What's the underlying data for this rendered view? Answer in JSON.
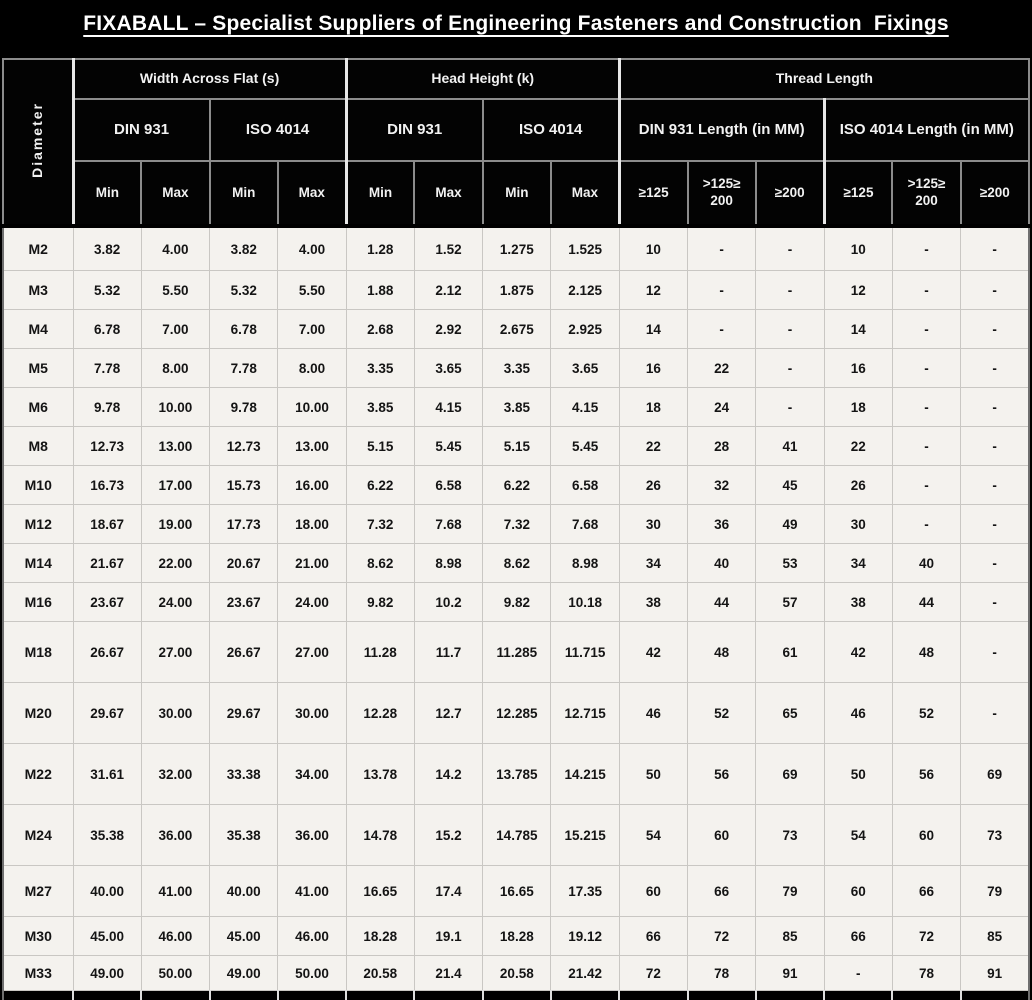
{
  "page": {
    "title": "FIXABALL – Specialist Suppliers of Engineering Fasteners and Construction  Fixings"
  },
  "table": {
    "diameter_header": "Diameter",
    "groups": [
      {
        "label": "Width Across Flat (s)"
      },
      {
        "label": "Head Height (k)"
      },
      {
        "label": "Thread Length"
      }
    ],
    "subgroups": [
      "DIN 931",
      "ISO 4014",
      "DIN 931",
      "ISO 4014",
      "DIN 931 Length (in MM)",
      "ISO 4014 Length (in MM)"
    ],
    "columns": [
      "Min",
      "Max",
      "Min",
      "Max",
      "Min",
      "Max",
      "Min",
      "Max",
      "≥125",
      ">125≥ 200",
      "≥200",
      "≥125",
      ">125≥ 200",
      "≥200"
    ],
    "rows": [
      {
        "diameter": "M2",
        "cells": [
          "3.82",
          "4.00",
          "3.82",
          "4.00",
          "1.28",
          "1.52",
          "1.275",
          "1.525",
          "10",
          "-",
          "-",
          "10",
          "-",
          "-"
        ]
      },
      {
        "diameter": "M3",
        "cells": [
          "5.32",
          "5.50",
          "5.32",
          "5.50",
          "1.88",
          "2.12",
          "1.875",
          "2.125",
          "12",
          "-",
          "-",
          "12",
          "-",
          "-"
        ]
      },
      {
        "diameter": "M4",
        "cells": [
          "6.78",
          "7.00",
          "6.78",
          "7.00",
          "2.68",
          "2.92",
          "2.675",
          "2.925",
          "14",
          "-",
          "-",
          "14",
          "-",
          "-"
        ]
      },
      {
        "diameter": "M5",
        "cells": [
          "7.78",
          "8.00",
          "7.78",
          "8.00",
          "3.35",
          "3.65",
          "3.35",
          "3.65",
          "16",
          "22",
          "-",
          "16",
          "-",
          "-"
        ]
      },
      {
        "diameter": "M6",
        "cells": [
          "9.78",
          "10.00",
          "9.78",
          "10.00",
          "3.85",
          "4.15",
          "3.85",
          "4.15",
          "18",
          "24",
          "-",
          "18",
          "-",
          "-"
        ]
      },
      {
        "diameter": "M8",
        "cells": [
          "12.73",
          "13.00",
          "12.73",
          "13.00",
          "5.15",
          "5.45",
          "5.15",
          "5.45",
          "22",
          "28",
          "41",
          "22",
          "-",
          "-"
        ]
      },
      {
        "diameter": "M10",
        "cells": [
          "16.73",
          "17.00",
          "15.73",
          "16.00",
          "6.22",
          "6.58",
          "6.22",
          "6.58",
          "26",
          "32",
          "45",
          "26",
          "-",
          "-"
        ]
      },
      {
        "diameter": "M12",
        "cells": [
          "18.67",
          "19.00",
          "17.73",
          "18.00",
          "7.32",
          "7.68",
          "7.32",
          "7.68",
          "30",
          "36",
          "49",
          "30",
          "-",
          "-"
        ]
      },
      {
        "diameter": "M14",
        "cells": [
          "21.67",
          "22.00",
          "20.67",
          "21.00",
          "8.62",
          "8.98",
          "8.62",
          "8.98",
          "34",
          "40",
          "53",
          "34",
          "40",
          "-"
        ]
      },
      {
        "diameter": "M16",
        "cells": [
          "23.67",
          "24.00",
          "23.67",
          "24.00",
          "9.82",
          "10.2",
          "9.82",
          "10.18",
          "38",
          "44",
          "57",
          "38",
          "44",
          "-"
        ]
      },
      {
        "diameter": "M18",
        "cells": [
          "26.67",
          "27.00",
          "26.67",
          "27.00",
          "11.28",
          "11.7",
          "11.285",
          "11.715",
          "42",
          "48",
          "61",
          "42",
          "48",
          "-"
        ]
      },
      {
        "diameter": "M20",
        "cells": [
          "29.67",
          "30.00",
          "29.67",
          "30.00",
          "12.28",
          "12.7",
          "12.285",
          "12.715",
          "46",
          "52",
          "65",
          "46",
          "52",
          "-"
        ]
      },
      {
        "diameter": "M22",
        "cells": [
          "31.61",
          "32.00",
          "33.38",
          "34.00",
          "13.78",
          "14.2",
          "13.785",
          "14.215",
          "50",
          "56",
          "69",
          "50",
          "56",
          "69"
        ]
      },
      {
        "diameter": "M24",
        "cells": [
          "35.38",
          "36.00",
          "35.38",
          "36.00",
          "14.78",
          "15.2",
          "14.785",
          "15.215",
          "54",
          "60",
          "73",
          "54",
          "60",
          "73"
        ]
      },
      {
        "diameter": "M27",
        "cells": [
          "40.00",
          "41.00",
          "40.00",
          "41.00",
          "16.65",
          "17.4",
          "16.65",
          "17.35",
          "60",
          "66",
          "79",
          "60",
          "66",
          "79"
        ]
      },
      {
        "diameter": "M30",
        "cells": [
          "45.00",
          "46.00",
          "45.00",
          "46.00",
          "18.28",
          "19.1",
          "18.28",
          "19.12",
          "66",
          "72",
          "85",
          "66",
          "72",
          "85"
        ]
      },
      {
        "diameter": "M33",
        "cells": [
          "49.00",
          "50.00",
          "49.00",
          "50.00",
          "20.58",
          "21.4",
          "20.58",
          "21.42",
          "72",
          "78",
          "91",
          "-",
          "78",
          "91"
        ]
      }
    ]
  }
}
